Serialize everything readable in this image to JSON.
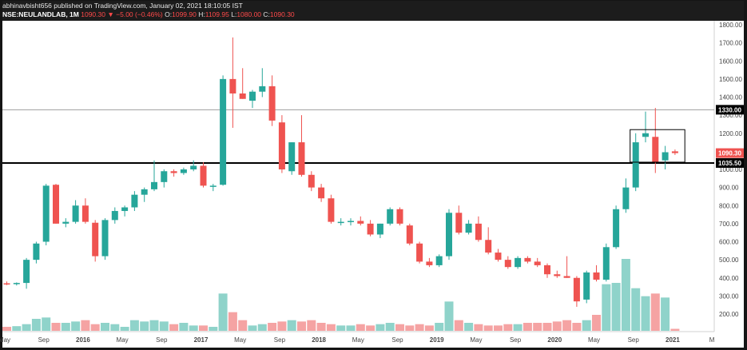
{
  "header": {
    "published_by": "abhinavbisht656 published on TradingView.com, January 02, 2021 18:10:05 IST",
    "symbol": "NSE:NEULANDLAB, 1M",
    "last": "1090.30",
    "arrow": "▼",
    "change": "−5.00 (−0.46%)",
    "open_label": "O:",
    "open": "1099.90",
    "high_label": "H:",
    "high": "1109.95",
    "low_label": "L:",
    "low": "1080.00",
    "close_label": "C:",
    "close": "1090.30"
  },
  "colors": {
    "up": "#26a69a",
    "down": "#ef5350",
    "up_volume": "#8fd3ca",
    "down_volume": "#f5a3a3",
    "background": "#ffffff",
    "frame": "#151515",
    "hline_thin": "#9e9e9e",
    "hline_thick": "#000000"
  },
  "chart_data": {
    "type": "candlestick",
    "price_axis": {
      "ylim": [
        100,
        1850
      ],
      "ticks": [
        "1800.00",
        "1700.00",
        "1600.00",
        "1500.00",
        "1400.00",
        "1300.00",
        "1200.00",
        "1100.00",
        "1000.00",
        "900.00",
        "800.00",
        "700.00",
        "600.00",
        "500.00",
        "400.00",
        "300.00",
        "200.00"
      ],
      "tick_values": [
        1800,
        1700,
        1600,
        1500,
        1400,
        1300,
        1200,
        1100,
        1000,
        900,
        800,
        700,
        600,
        500,
        400,
        300,
        200
      ]
    },
    "time_axis": {
      "labels": [
        "May",
        "Sep",
        "2016",
        "May",
        "Sep",
        "2017",
        "May",
        "Sep",
        "2018",
        "May",
        "Sep",
        "2019",
        "May",
        "Sep",
        "2020",
        "May",
        "Sep",
        "2021",
        "M"
      ],
      "label_month_index": [
        0,
        4,
        8,
        12,
        16,
        20,
        24,
        28,
        32,
        36,
        40,
        44,
        48,
        52,
        56,
        60,
        64,
        68,
        72
      ]
    },
    "horizontal_lines": [
      {
        "value": 1330,
        "label": "1330.00",
        "style": "thin"
      },
      {
        "value": 1035.5,
        "label": "1035.50",
        "style": "thick"
      }
    ],
    "price_labels": [
      {
        "value": 1090.3,
        "label": "1090.30",
        "color": "#ef5350"
      }
    ],
    "box": {
      "from_month": 64,
      "to_month": 69,
      "low": 1040,
      "high": 1220
    },
    "candles": [
      {
        "m": 0,
        "o": 370,
        "h": 380,
        "l": 360,
        "c": 368
      },
      {
        "m": 1,
        "o": 368,
        "h": 375,
        "l": 358,
        "c": 372
      },
      {
        "m": 2,
        "o": 372,
        "h": 510,
        "l": 340,
        "c": 500
      },
      {
        "m": 3,
        "o": 500,
        "h": 600,
        "l": 480,
        "c": 590
      },
      {
        "m": 4,
        "o": 600,
        "h": 920,
        "l": 580,
        "c": 910
      },
      {
        "m": 5,
        "o": 915,
        "h": 920,
        "l": 700,
        "c": 700
      },
      {
        "m": 6,
        "o": 700,
        "h": 730,
        "l": 680,
        "c": 710
      },
      {
        "m": 7,
        "o": 710,
        "h": 830,
        "l": 700,
        "c": 800
      },
      {
        "m": 8,
        "o": 800,
        "h": 840,
        "l": 700,
        "c": 710
      },
      {
        "m": 9,
        "o": 705,
        "h": 720,
        "l": 490,
        "c": 520
      },
      {
        "m": 10,
        "o": 520,
        "h": 730,
        "l": 500,
        "c": 720
      },
      {
        "m": 11,
        "o": 720,
        "h": 790,
        "l": 700,
        "c": 770
      },
      {
        "m": 12,
        "o": 770,
        "h": 800,
        "l": 740,
        "c": 790
      },
      {
        "m": 13,
        "o": 790,
        "h": 880,
        "l": 770,
        "c": 860
      },
      {
        "m": 14,
        "o": 860,
        "h": 900,
        "l": 820,
        "c": 890
      },
      {
        "m": 15,
        "o": 890,
        "h": 1050,
        "l": 880,
        "c": 930
      },
      {
        "m": 16,
        "o": 930,
        "h": 1000,
        "l": 900,
        "c": 990
      },
      {
        "m": 17,
        "o": 990,
        "h": 1000,
        "l": 960,
        "c": 980
      },
      {
        "m": 18,
        "o": 980,
        "h": 1010,
        "l": 970,
        "c": 1000
      },
      {
        "m": 19,
        "o": 1000,
        "h": 1050,
        "l": 990,
        "c": 1020
      },
      {
        "m": 20,
        "o": 1020,
        "h": 1040,
        "l": 900,
        "c": 910
      },
      {
        "m": 21,
        "o": 905,
        "h": 920,
        "l": 880,
        "c": 910
      },
      {
        "m": 22,
        "o": 915,
        "h": 1520,
        "l": 910,
        "c": 1500
      },
      {
        "m": 23,
        "o": 1500,
        "h": 1730,
        "l": 1230,
        "c": 1420
      },
      {
        "m": 24,
        "o": 1420,
        "h": 1560,
        "l": 1390,
        "c": 1390
      },
      {
        "m": 25,
        "o": 1380,
        "h": 1440,
        "l": 1340,
        "c": 1430
      },
      {
        "m": 26,
        "o": 1430,
        "h": 1560,
        "l": 1400,
        "c": 1460
      },
      {
        "m": 27,
        "o": 1460,
        "h": 1520,
        "l": 1240,
        "c": 1270
      },
      {
        "m": 28,
        "o": 1260,
        "h": 1300,
        "l": 980,
        "c": 1000
      },
      {
        "m": 29,
        "o": 990,
        "h": 1150,
        "l": 970,
        "c": 1150
      },
      {
        "m": 30,
        "o": 1150,
        "h": 1300,
        "l": 960,
        "c": 970
      },
      {
        "m": 31,
        "o": 970,
        "h": 990,
        "l": 880,
        "c": 900
      },
      {
        "m": 32,
        "o": 900,
        "h": 920,
        "l": 820,
        "c": 840
      },
      {
        "m": 33,
        "o": 840,
        "h": 860,
        "l": 700,
        "c": 710
      },
      {
        "m": 34,
        "o": 710,
        "h": 730,
        "l": 690,
        "c": 710
      },
      {
        "m": 35,
        "o": 710,
        "h": 730,
        "l": 690,
        "c": 715
      },
      {
        "m": 36,
        "o": 715,
        "h": 740,
        "l": 690,
        "c": 700
      },
      {
        "m": 37,
        "o": 700,
        "h": 720,
        "l": 630,
        "c": 640
      },
      {
        "m": 38,
        "o": 640,
        "h": 700,
        "l": 620,
        "c": 700
      },
      {
        "m": 39,
        "o": 700,
        "h": 790,
        "l": 690,
        "c": 780
      },
      {
        "m": 40,
        "o": 780,
        "h": 790,
        "l": 690,
        "c": 700
      },
      {
        "m": 41,
        "o": 690,
        "h": 700,
        "l": 580,
        "c": 590
      },
      {
        "m": 42,
        "o": 590,
        "h": 600,
        "l": 480,
        "c": 490
      },
      {
        "m": 43,
        "o": 490,
        "h": 510,
        "l": 460,
        "c": 470
      },
      {
        "m": 44,
        "o": 470,
        "h": 530,
        "l": 460,
        "c": 520
      },
      {
        "m": 45,
        "o": 520,
        "h": 780,
        "l": 500,
        "c": 760
      },
      {
        "m": 46,
        "o": 760,
        "h": 800,
        "l": 640,
        "c": 650
      },
      {
        "m": 47,
        "o": 650,
        "h": 720,
        "l": 640,
        "c": 700
      },
      {
        "m": 48,
        "o": 700,
        "h": 740,
        "l": 600,
        "c": 610
      },
      {
        "m": 49,
        "o": 610,
        "h": 680,
        "l": 530,
        "c": 540
      },
      {
        "m": 50,
        "o": 540,
        "h": 560,
        "l": 490,
        "c": 500
      },
      {
        "m": 51,
        "o": 500,
        "h": 520,
        "l": 450,
        "c": 460
      },
      {
        "m": 52,
        "o": 460,
        "h": 520,
        "l": 450,
        "c": 510
      },
      {
        "m": 53,
        "o": 510,
        "h": 520,
        "l": 480,
        "c": 490
      },
      {
        "m": 54,
        "o": 490,
        "h": 510,
        "l": 460,
        "c": 470
      },
      {
        "m": 55,
        "o": 470,
        "h": 480,
        "l": 400,
        "c": 420
      },
      {
        "m": 56,
        "o": 420,
        "h": 440,
        "l": 400,
        "c": 410
      },
      {
        "m": 57,
        "o": 410,
        "h": 520,
        "l": 400,
        "c": 400
      },
      {
        "m": 58,
        "o": 400,
        "h": 410,
        "l": 240,
        "c": 270
      },
      {
        "m": 59,
        "o": 280,
        "h": 440,
        "l": 260,
        "c": 430
      },
      {
        "m": 60,
        "o": 430,
        "h": 470,
        "l": 380,
        "c": 390
      },
      {
        "m": 61,
        "o": 390,
        "h": 590,
        "l": 380,
        "c": 570
      },
      {
        "m": 62,
        "o": 570,
        "h": 800,
        "l": 560,
        "c": 780
      },
      {
        "m": 63,
        "o": 780,
        "h": 950,
        "l": 760,
        "c": 900
      },
      {
        "m": 64,
        "o": 900,
        "h": 1200,
        "l": 880,
        "c": 1150
      },
      {
        "m": 65,
        "o": 1180,
        "h": 1320,
        "l": 1150,
        "c": 1200
      },
      {
        "m": 66,
        "o": 1180,
        "h": 1340,
        "l": 980,
        "c": 1040
      },
      {
        "m": 67,
        "o": 1050,
        "h": 1130,
        "l": 1000,
        "c": 1095
      },
      {
        "m": 68,
        "o": 1099.9,
        "h": 1109.95,
        "l": 1080,
        "c": 1090.3
      }
    ],
    "volume_scale_max": 600,
    "volume": [
      30,
      35,
      50,
      90,
      100,
      60,
      60,
      70,
      80,
      50,
      60,
      50,
      30,
      80,
      70,
      80,
      70,
      50,
      60,
      40,
      40,
      30,
      280,
      140,
      80,
      40,
      50,
      60,
      70,
      80,
      70,
      80,
      60,
      50,
      40,
      40,
      50,
      40,
      50,
      60,
      50,
      40,
      50,
      40,
      60,
      220,
      80,
      60,
      50,
      40,
      40,
      50,
      50,
      60,
      60,
      60,
      70,
      80,
      60,
      80,
      120,
      350,
      360,
      540,
      320,
      260,
      280,
      250,
      15
    ]
  }
}
